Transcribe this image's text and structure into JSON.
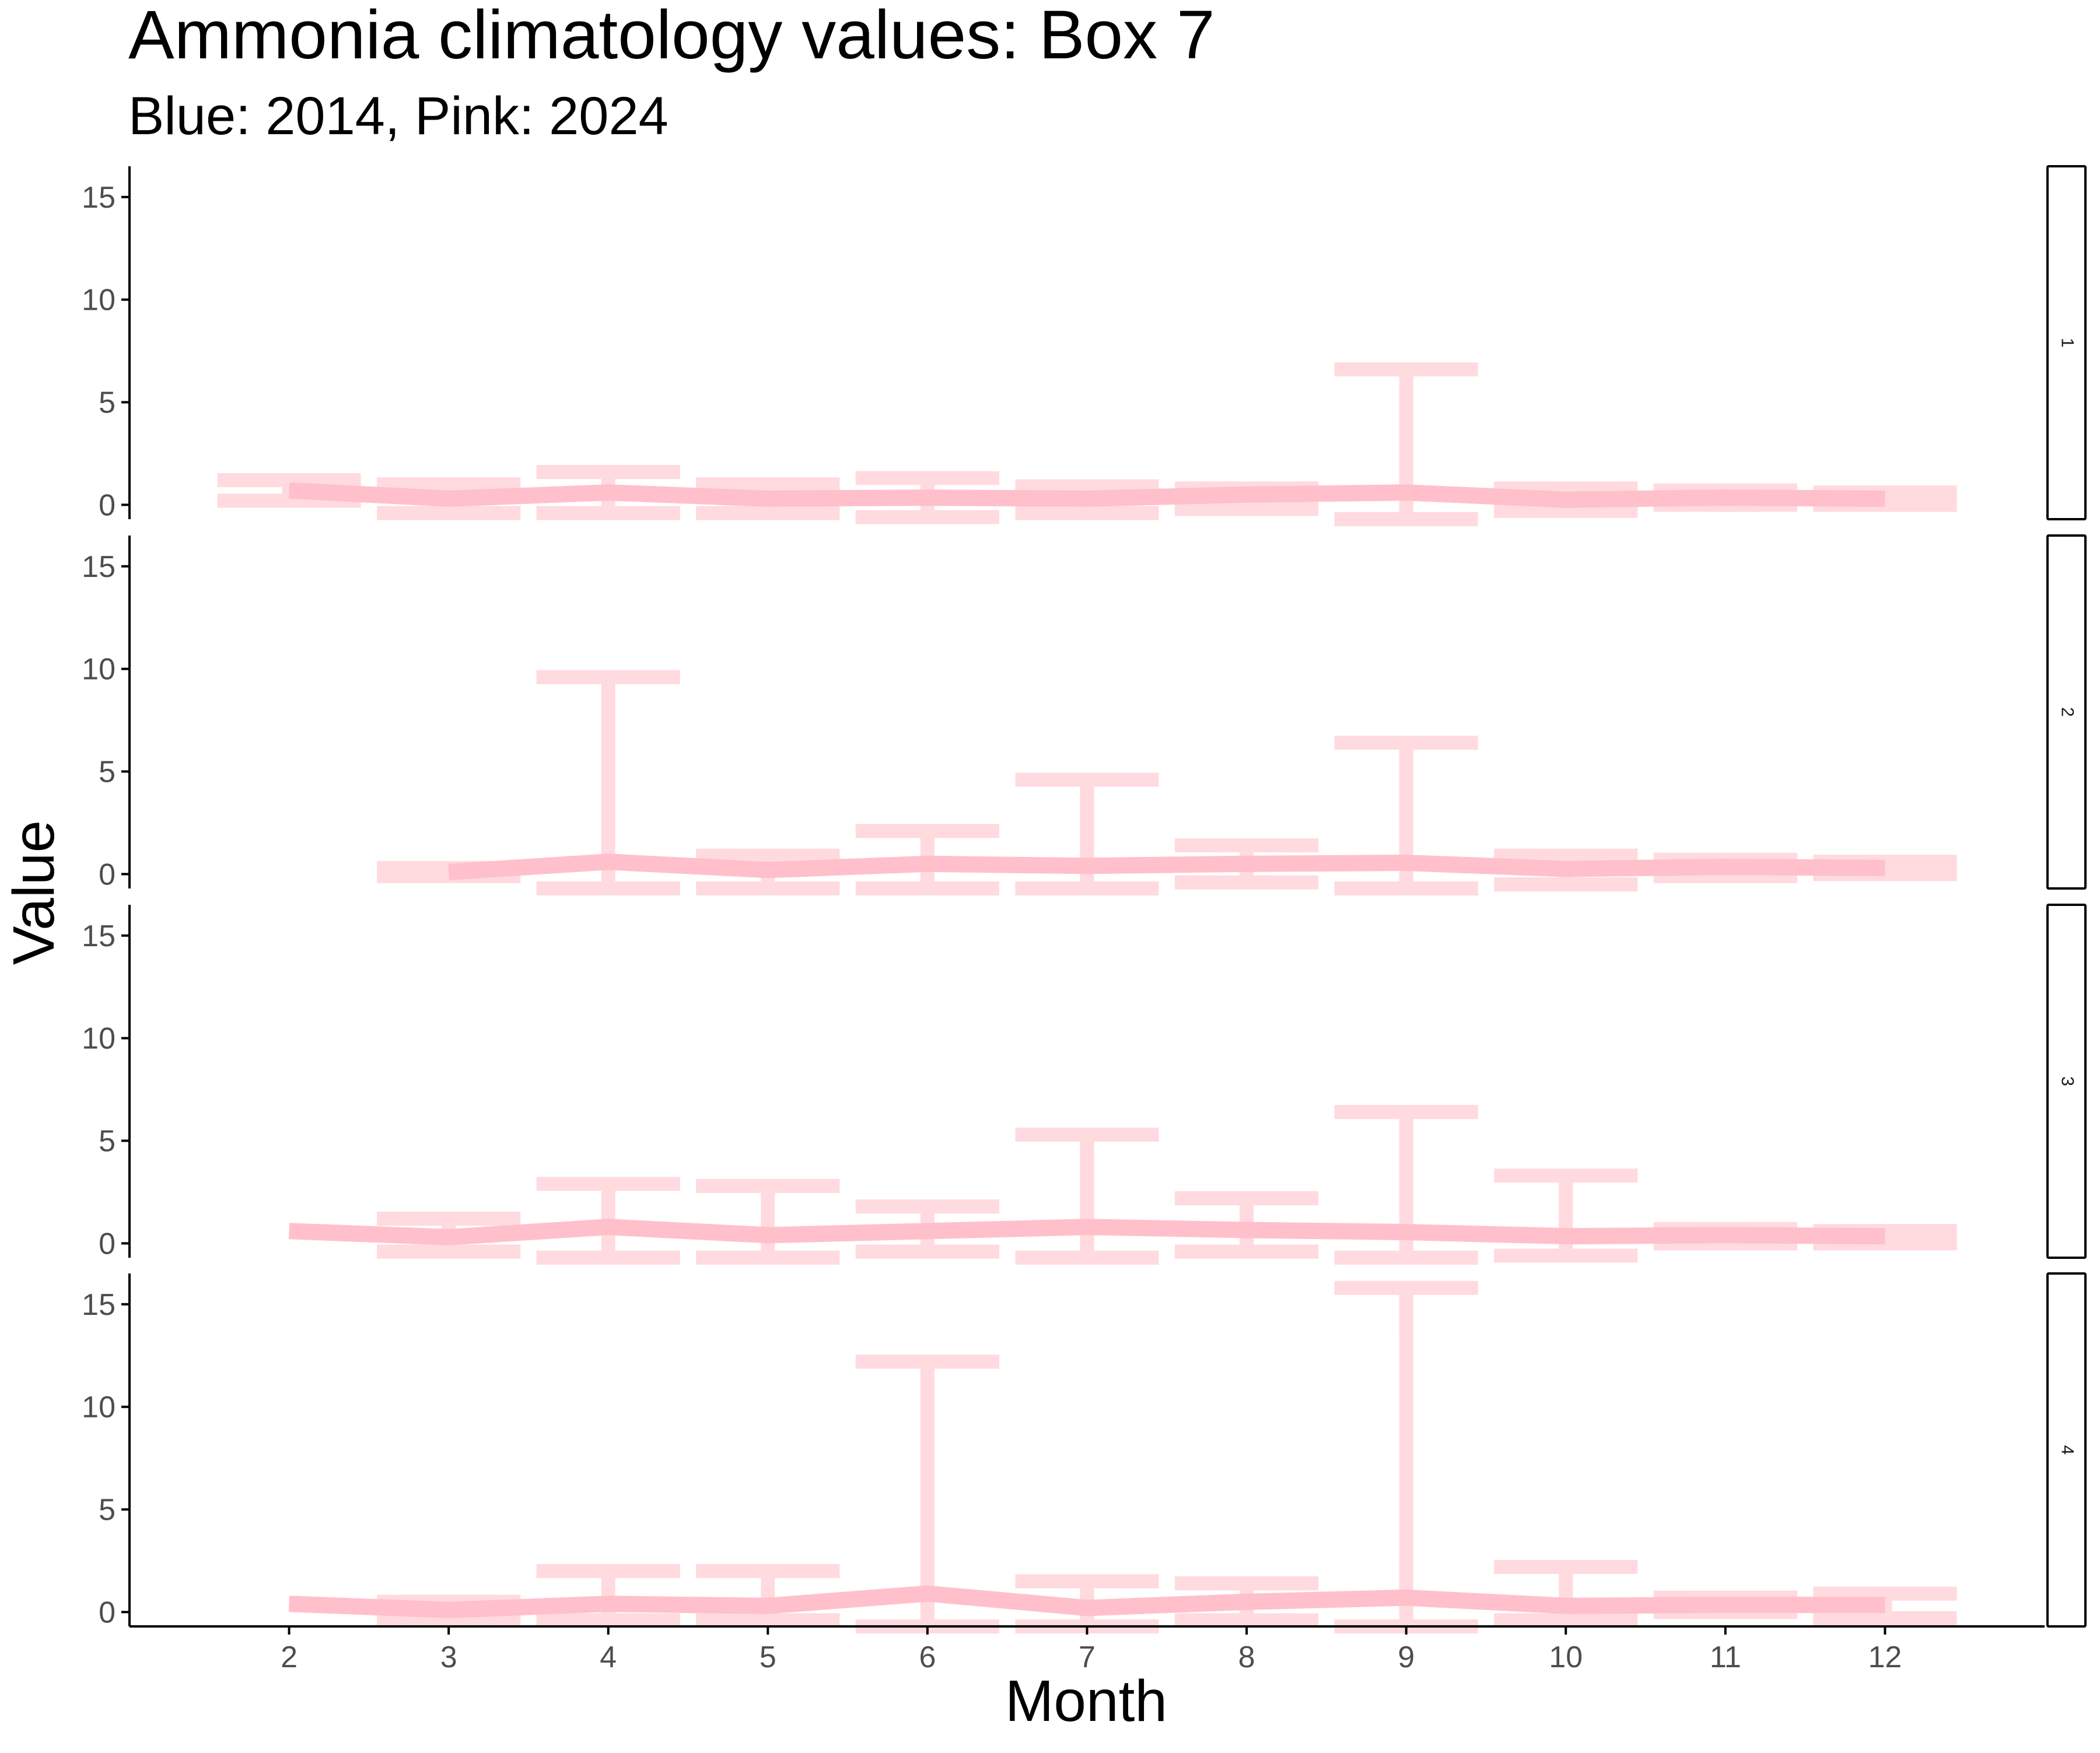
{
  "chart_data": {
    "type": "line",
    "title": "Ammonia climatology values: Box 7",
    "subtitle": "Blue: 2014, Pink: 2024",
    "xlabel": "Month",
    "ylabel": "Value",
    "x_ticks": [
      2,
      3,
      4,
      5,
      6,
      7,
      8,
      9,
      10,
      11,
      12
    ],
    "y_ticks": [
      0,
      5,
      10,
      15
    ],
    "xlim": [
      1,
      13
    ],
    "ylim": [
      -0.7,
      16.5
    ],
    "grid": false,
    "legend": "none",
    "colors": {
      "line": "#ffc0cb",
      "errorbar": "#ffb6c1",
      "axis": "#000000",
      "tick_text": "#4d4d4d"
    },
    "panels": [
      {
        "label": "1",
        "line": {
          "x": [
            2,
            3,
            4,
            5,
            6,
            7,
            8,
            9,
            10,
            11,
            12
          ],
          "y": [
            0.7,
            0.3,
            0.6,
            0.3,
            0.35,
            0.3,
            0.5,
            0.6,
            0.25,
            0.35,
            0.3
          ]
        },
        "errorbars": [
          {
            "x": 2,
            "ymin": 0.2,
            "ymax": 1.2
          },
          {
            "x": 3,
            "ymin": -0.4,
            "ymax": 1.0
          },
          {
            "x": 4,
            "ymin": -0.4,
            "ymax": 1.6
          },
          {
            "x": 5,
            "ymin": -0.4,
            "ymax": 1.0
          },
          {
            "x": 6,
            "ymin": -0.6,
            "ymax": 1.3
          },
          {
            "x": 7,
            "ymin": -0.4,
            "ymax": 0.9
          },
          {
            "x": 8,
            "ymin": -0.2,
            "ymax": 0.8
          },
          {
            "x": 9,
            "ymin": -0.7,
            "ymax": 6.6
          },
          {
            "x": 10,
            "ymin": -0.3,
            "ymax": 0.8
          },
          {
            "x": 11,
            "ymin": 0.0,
            "ymax": 0.7
          },
          {
            "x": 12,
            "ymin": 0.0,
            "ymax": 0.6
          }
        ]
      },
      {
        "label": "2",
        "line": {
          "x": [
            3,
            4,
            5,
            6,
            7,
            8,
            9,
            10,
            11,
            12
          ],
          "y": [
            0.1,
            0.6,
            0.2,
            0.5,
            0.4,
            0.5,
            0.55,
            0.25,
            0.35,
            0.3
          ]
        },
        "errorbars": [
          {
            "x": 3,
            "ymin": -0.1,
            "ymax": 0.3
          },
          {
            "x": 4,
            "ymin": -0.7,
            "ymax": 9.6
          },
          {
            "x": 5,
            "ymin": -0.7,
            "ymax": 0.9
          },
          {
            "x": 6,
            "ymin": -0.7,
            "ymax": 2.1
          },
          {
            "x": 7,
            "ymin": -0.7,
            "ymax": 4.6
          },
          {
            "x": 8,
            "ymin": -0.4,
            "ymax": 1.4
          },
          {
            "x": 9,
            "ymin": -0.7,
            "ymax": 6.4
          },
          {
            "x": 10,
            "ymin": -0.5,
            "ymax": 0.9
          },
          {
            "x": 11,
            "ymin": -0.1,
            "ymax": 0.7
          },
          {
            "x": 12,
            "ymin": 0.0,
            "ymax": 0.6
          }
        ]
      },
      {
        "label": "3",
        "line": {
          "x": [
            2,
            3,
            4,
            5,
            6,
            7,
            8,
            9,
            10,
            11,
            12
          ],
          "y": [
            0.6,
            0.3,
            0.8,
            0.4,
            0.6,
            0.8,
            0.65,
            0.55,
            0.35,
            0.4,
            0.35
          ]
        },
        "errorbars": [
          {
            "x": 3,
            "ymin": -0.4,
            "ymax": 1.2
          },
          {
            "x": 4,
            "ymin": -0.7,
            "ymax": 2.9
          },
          {
            "x": 5,
            "ymin": -0.7,
            "ymax": 2.8
          },
          {
            "x": 6,
            "ymin": -0.4,
            "ymax": 1.8
          },
          {
            "x": 7,
            "ymin": -0.7,
            "ymax": 5.3
          },
          {
            "x": 8,
            "ymin": -0.4,
            "ymax": 2.2
          },
          {
            "x": 9,
            "ymin": -0.7,
            "ymax": 6.4
          },
          {
            "x": 10,
            "ymin": -0.6,
            "ymax": 3.3
          },
          {
            "x": 11,
            "ymin": 0.0,
            "ymax": 0.7
          },
          {
            "x": 12,
            "ymin": 0.0,
            "ymax": 0.6
          }
        ]
      },
      {
        "label": "4",
        "line": {
          "x": [
            2,
            3,
            4,
            5,
            6,
            7,
            8,
            9,
            10,
            11,
            12
          ],
          "y": [
            0.4,
            0.1,
            0.4,
            0.3,
            0.9,
            0.2,
            0.5,
            0.7,
            0.3,
            0.35,
            0.35
          ]
        },
        "errorbars": [
          {
            "x": 3,
            "ymin": -0.4,
            "ymax": 0.5
          },
          {
            "x": 4,
            "ymin": -0.4,
            "ymax": 2.0
          },
          {
            "x": 5,
            "ymin": -0.4,
            "ymax": 2.0
          },
          {
            "x": 6,
            "ymin": -0.7,
            "ymax": 12.2
          },
          {
            "x": 7,
            "ymin": -0.7,
            "ymax": 1.5
          },
          {
            "x": 8,
            "ymin": -0.4,
            "ymax": 1.4
          },
          {
            "x": 9,
            "ymin": -0.7,
            "ymax": 15.8
          },
          {
            "x": 10,
            "ymin": -0.4,
            "ymax": 2.2
          },
          {
            "x": 11,
            "ymin": 0.0,
            "ymax": 0.7
          },
          {
            "x": 12,
            "ymin": -0.3,
            "ymax": 0.9
          }
        ]
      }
    ]
  }
}
